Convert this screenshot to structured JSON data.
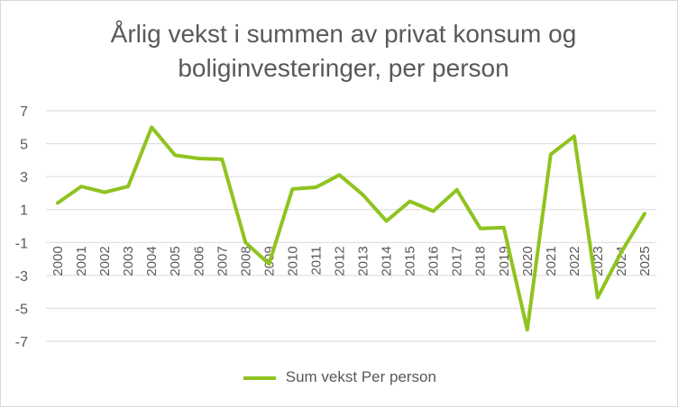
{
  "chart_data": {
    "type": "line",
    "title": "Årlig vekst i summen av privat konsum og boliginvesteringer, per person",
    "title_lines": [
      "Årlig vekst i summen av privat konsum og",
      "boliginvesteringer, per person"
    ],
    "categories": [
      "2000",
      "2001",
      "2002",
      "2003",
      "2004",
      "2005",
      "2006",
      "2007",
      "2008",
      "2009",
      "2010",
      "2011",
      "2012",
      "2013",
      "2014",
      "2015",
      "2016",
      "2017",
      "2018",
      "2019",
      "2020",
      "2021",
      "2022",
      "2023",
      "2024",
      "2025"
    ],
    "series": [
      {
        "name": "Sum vekst Per person",
        "color": "#8fc31f",
        "values": [
          1.4,
          2.4,
          2.05,
          2.4,
          6.0,
          4.3,
          4.1,
          4.05,
          -1.0,
          -2.3,
          2.25,
          2.35,
          3.1,
          1.9,
          0.3,
          1.5,
          0.9,
          2.2,
          -0.15,
          -0.1,
          -6.3,
          4.35,
          5.45,
          -4.35,
          -1.6,
          0.75
        ]
      }
    ],
    "yticks": [
      7,
      5,
      3,
      1,
      -1,
      -3,
      -5,
      -7
    ],
    "ylim": [
      -7,
      7
    ],
    "grid": true,
    "legend_position": "bottom"
  }
}
